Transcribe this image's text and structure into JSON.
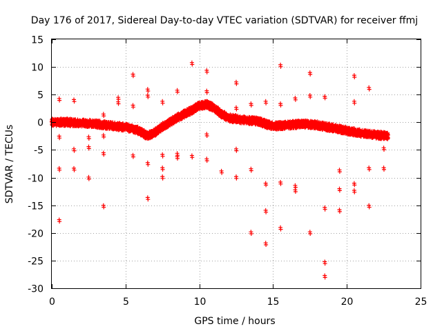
{
  "chart_data": {
    "type": "scatter",
    "title": "Day 176 of 2017, Sidereal Day-to-day VTEC variation (SDTVAR) for receiver ffmj",
    "xlabel": "GPS time / hours",
    "ylabel": "SDTVAR / TECUs",
    "xlim": [
      0,
      25
    ],
    "ylim": [
      -30,
      15
    ],
    "xticks": [
      0,
      5,
      10,
      15,
      20,
      25
    ],
    "yticks": [
      15,
      10,
      5,
      0,
      -5,
      -10,
      -15,
      -20,
      -25,
      -30
    ],
    "grid": true,
    "marker": "+",
    "color": "#ff0000",
    "baseline": [
      [
        0.0,
        0.0
      ],
      [
        1.0,
        0.0
      ],
      [
        2.0,
        -0.1
      ],
      [
        3.0,
        -0.3
      ],
      [
        4.0,
        -0.6
      ],
      [
        5.0,
        -0.9
      ],
      [
        5.8,
        -1.4
      ],
      [
        6.5,
        -2.5
      ],
      [
        7.0,
        -1.8
      ],
      [
        7.5,
        -0.8
      ],
      [
        8.0,
        0.0
      ],
      [
        8.5,
        0.8
      ],
      [
        9.0,
        1.5
      ],
      [
        9.5,
        2.2
      ],
      [
        10.0,
        3.0
      ],
      [
        10.5,
        3.2
      ],
      [
        11.0,
        2.6
      ],
      [
        11.5,
        1.5
      ],
      [
        12.0,
        0.8
      ],
      [
        13.0,
        0.4
      ],
      [
        14.0,
        0.2
      ],
      [
        14.5,
        -0.3
      ],
      [
        15.0,
        -0.7
      ],
      [
        16.0,
        -0.5
      ],
      [
        17.0,
        -0.3
      ],
      [
        18.0,
        -0.5
      ],
      [
        19.0,
        -1.0
      ],
      [
        20.0,
        -1.5
      ],
      [
        21.0,
        -2.0
      ],
      [
        22.0,
        -2.3
      ],
      [
        22.8,
        -2.5
      ]
    ],
    "outliers": [
      [
        0.5,
        4.3
      ],
      [
        0.5,
        -2.5
      ],
      [
        0.5,
        -8.3
      ],
      [
        0.5,
        -17.6
      ],
      [
        1.5,
        4.1
      ],
      [
        1.5,
        -4.8
      ],
      [
        1.5,
        -8.3
      ],
      [
        2.5,
        -2.6
      ],
      [
        2.5,
        -4.4
      ],
      [
        2.5,
        -9.9
      ],
      [
        3.5,
        1.5
      ],
      [
        3.5,
        -2.3
      ],
      [
        3.5,
        -5.5
      ],
      [
        3.5,
        -15.0
      ],
      [
        4.5,
        4.5
      ],
      [
        4.5,
        3.7
      ],
      [
        5.5,
        8.7
      ],
      [
        5.5,
        3.1
      ],
      [
        5.5,
        -5.9
      ],
      [
        6.5,
        6.0
      ],
      [
        6.5,
        4.9
      ],
      [
        6.5,
        -7.3
      ],
      [
        6.5,
        -13.6
      ],
      [
        7.5,
        3.8
      ],
      [
        7.5,
        -5.8
      ],
      [
        7.5,
        -8.2
      ],
      [
        7.5,
        -9.8
      ],
      [
        8.5,
        5.8
      ],
      [
        8.5,
        -5.6
      ],
      [
        8.5,
        -6.2
      ],
      [
        9.5,
        10.8
      ],
      [
        9.5,
        -6.0
      ],
      [
        10.5,
        9.4
      ],
      [
        10.5,
        5.7
      ],
      [
        10.5,
        -2.1
      ],
      [
        10.5,
        -6.6
      ],
      [
        11.5,
        -8.8
      ],
      [
        12.5,
        7.3
      ],
      [
        12.5,
        2.7
      ],
      [
        12.5,
        -4.8
      ],
      [
        12.5,
        -9.8
      ],
      [
        13.5,
        3.4
      ],
      [
        13.5,
        -8.4
      ],
      [
        13.5,
        -19.8
      ],
      [
        14.5,
        3.8
      ],
      [
        14.5,
        -11.0
      ],
      [
        14.5,
        -15.9
      ],
      [
        14.5,
        -21.8
      ],
      [
        15.5,
        10.4
      ],
      [
        15.5,
        3.4
      ],
      [
        15.5,
        -10.8
      ],
      [
        15.5,
        -19.0
      ],
      [
        16.5,
        4.4
      ],
      [
        16.5,
        -11.4
      ],
      [
        16.5,
        -12.2
      ],
      [
        17.5,
        9.0
      ],
      [
        17.5,
        4.9
      ],
      [
        17.5,
        -19.8
      ],
      [
        18.5,
        4.7
      ],
      [
        18.5,
        -15.4
      ],
      [
        18.5,
        -25.2
      ],
      [
        18.5,
        -27.7
      ],
      [
        19.5,
        -8.6
      ],
      [
        19.5,
        -12.0
      ],
      [
        19.5,
        -15.8
      ],
      [
        20.5,
        8.5
      ],
      [
        20.5,
        3.8
      ],
      [
        20.5,
        -11.0
      ],
      [
        20.5,
        -12.3
      ],
      [
        21.5,
        6.3
      ],
      [
        21.5,
        -8.2
      ],
      [
        21.5,
        -15.0
      ],
      [
        22.5,
        -4.6
      ],
      [
        22.5,
        -8.2
      ]
    ]
  }
}
